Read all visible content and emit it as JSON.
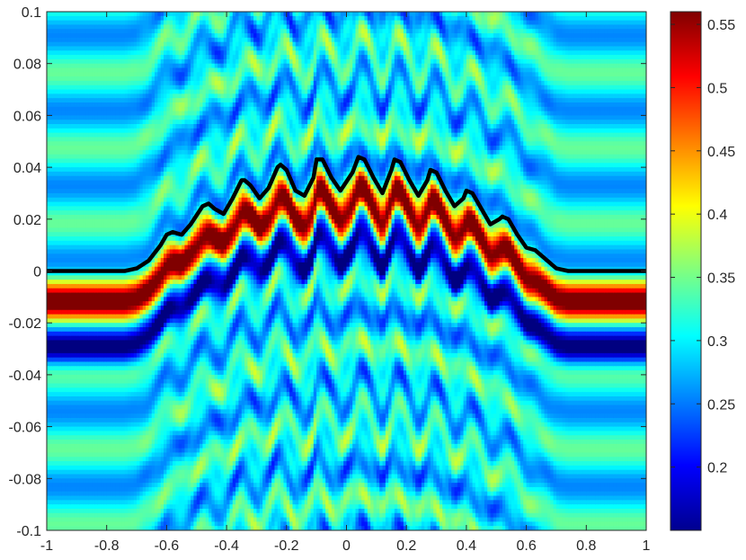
{
  "chart_data": {
    "type": "heatmap",
    "title": "",
    "xlabel": "",
    "ylabel": "",
    "xlim": [
      -1,
      1
    ],
    "ylim": [
      -0.1,
      0.1
    ],
    "x_ticks": [
      -1,
      -0.8,
      -0.6,
      -0.4,
      -0.2,
      0,
      0.2,
      0.4,
      0.6,
      0.8,
      1
    ],
    "x_tick_labels": [
      "-1",
      "-0.8",
      "-0.6",
      "-0.4",
      "-0.2",
      "0",
      "0.2",
      "0.4",
      "0.6",
      "0.8",
      "1"
    ],
    "y_ticks": [
      0.1,
      0.08,
      0.06,
      0.04,
      0.02,
      0,
      -0.02,
      -0.04,
      -0.06,
      -0.08,
      -0.1
    ],
    "y_tick_labels": [
      "0.1",
      "0.08",
      "0.06",
      "0.04",
      "0.02",
      "0",
      "-0.02",
      "-0.04",
      "-0.06",
      "-0.08",
      "-0.1"
    ],
    "colormap": "jet",
    "colorbar": {
      "range": [
        0.15,
        0.56
      ],
      "ticks": [
        0.55,
        0.5,
        0.45,
        0.4,
        0.35,
        0.3,
        0.25,
        0.2
      ],
      "tick_labels": [
        "0.55",
        "0.5",
        "0.45",
        "0.4",
        "0.35",
        "0.3",
        "0.25",
        "0.2"
      ]
    },
    "grid": false,
    "field_description": "interference pattern around a rough surface; max band just below the surface, min band below that",
    "surface_profile": {
      "color": "#000000",
      "x": [
        -1,
        -0.74,
        -0.7,
        -0.66,
        -0.62,
        -0.6,
        -0.58,
        -0.55,
        -0.52,
        -0.48,
        -0.46,
        -0.44,
        -0.41,
        -0.38,
        -0.35,
        -0.34,
        -0.32,
        -0.29,
        -0.26,
        -0.23,
        -0.22,
        -0.2,
        -0.17,
        -0.14,
        -0.11,
        -0.1,
        -0.08,
        -0.05,
        -0.02,
        0.02,
        0.04,
        0.06,
        0.09,
        0.12,
        0.15,
        0.16,
        0.18,
        0.21,
        0.24,
        0.27,
        0.28,
        0.3,
        0.33,
        0.36,
        0.39,
        0.4,
        0.42,
        0.45,
        0.48,
        0.51,
        0.52,
        0.54,
        0.57,
        0.6,
        0.63,
        0.64,
        0.66,
        0.7,
        0.74,
        1
      ],
      "y": [
        0,
        0,
        0.001,
        0.004,
        0.01,
        0.014,
        0.015,
        0.014,
        0.018,
        0.025,
        0.026,
        0.024,
        0.022,
        0.028,
        0.035,
        0.035,
        0.033,
        0.028,
        0.032,
        0.04,
        0.041,
        0.039,
        0.031,
        0.029,
        0.036,
        0.043,
        0.043,
        0.036,
        0.031,
        0.038,
        0.044,
        0.043,
        0.036,
        0.03,
        0.039,
        0.043,
        0.042,
        0.035,
        0.029,
        0.035,
        0.039,
        0.038,
        0.031,
        0.025,
        0.028,
        0.031,
        0.03,
        0.024,
        0.018,
        0.02,
        0.021,
        0.02,
        0.014,
        0.009,
        0.008,
        0.007,
        0.005,
        0.001,
        0,
        0
      ]
    }
  }
}
